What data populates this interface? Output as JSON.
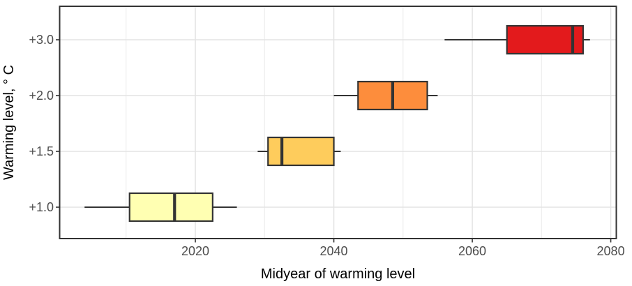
{
  "chart_data": {
    "type": "boxplot",
    "orientation": "horizontal",
    "title": "",
    "xlabel": "Midyear of warming level",
    "ylabel": "Warming level, ° C",
    "categories": [
      "+1.0",
      "+1.5",
      "+2.0",
      "+3.0"
    ],
    "series": [
      {
        "name": "+1.0",
        "min": 2004,
        "q1": 2010.5,
        "median": 2017,
        "q3": 2022.5,
        "max": 2026,
        "fill": "#FFFFB2"
      },
      {
        "name": "+1.5",
        "min": 2029,
        "q1": 2030.5,
        "median": 2032.5,
        "q3": 2040,
        "max": 2041,
        "fill": "#FECC5C"
      },
      {
        "name": "+2.0",
        "min": 2040,
        "q1": 2043.5,
        "median": 2048.5,
        "q3": 2053.5,
        "max": 2055,
        "fill": "#FD8D3C"
      },
      {
        "name": "+3.0",
        "min": 2056,
        "q1": 2065,
        "median": 2074.5,
        "q3": 2076,
        "max": 2077,
        "fill": "#E31A1C"
      }
    ],
    "x_ticks": [
      2020,
      2040,
      2060,
      2080
    ],
    "x_minor_gridlines": [
      2010,
      2030,
      2050,
      2070
    ],
    "xlim": [
      2000.4,
      2080.8
    ],
    "grid": true,
    "legend": "none",
    "colors": {
      "box_stroke": "#333333",
      "panel_border": "#333333",
      "grid_major": "#e3e3e3",
      "grid_minor": "#ebebeb",
      "tick_mark": "#333333",
      "tick_label": "#4d4d4d",
      "axis_title": "#000000",
      "background": "#ffffff"
    }
  }
}
